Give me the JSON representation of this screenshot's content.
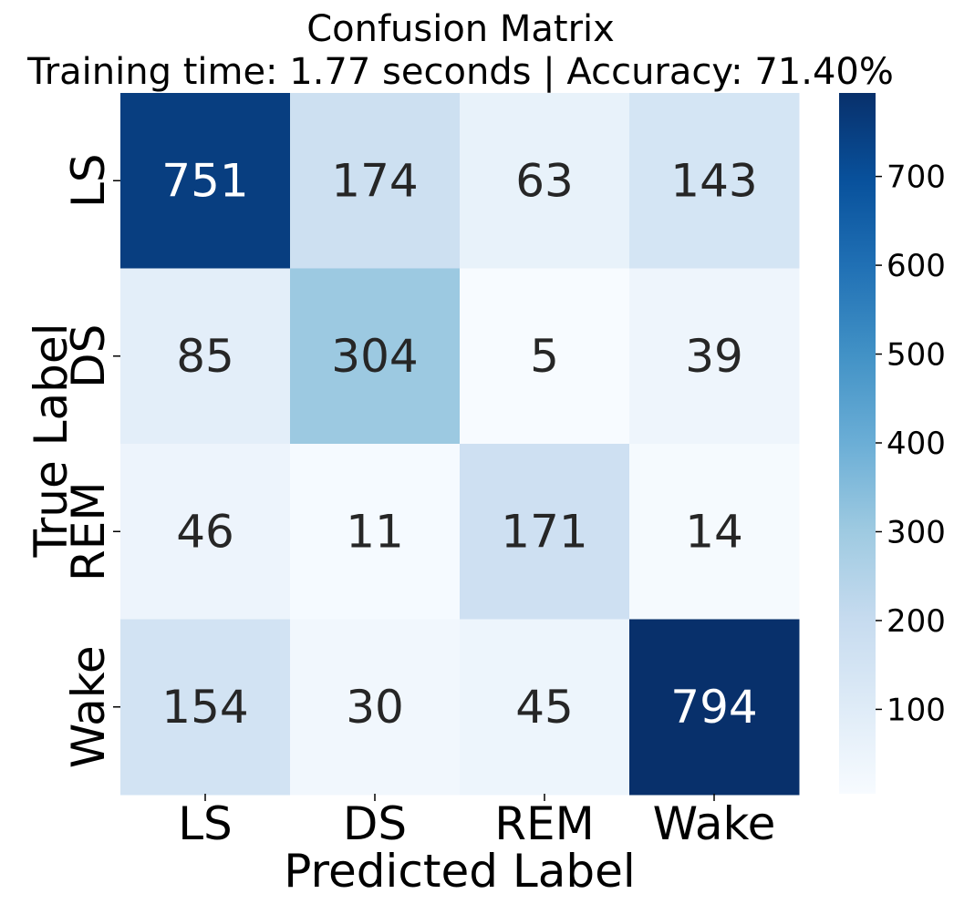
{
  "chart_data": {
    "type": "heatmap",
    "title": "Confusion Matrix",
    "subtitle": "Training time: 1.77 seconds | Accuracy: 71.40%",
    "xlabel": "Predicted Label",
    "ylabel": "True Label",
    "x_categories": [
      "LS",
      "DS",
      "REM",
      "Wake"
    ],
    "y_categories": [
      "LS",
      "DS",
      "REM",
      "Wake"
    ],
    "values": [
      [
        751,
        174,
        63,
        143
      ],
      [
        85,
        304,
        5,
        39
      ],
      [
        46,
        11,
        171,
        14
      ],
      [
        154,
        30,
        45,
        794
      ]
    ],
    "colormap": "Blues",
    "colorbar": {
      "range": [
        5,
        794
      ],
      "ticks": [
        100,
        200,
        300,
        400,
        500,
        600,
        700
      ],
      "tick_labels": [
        "100",
        "200",
        "300",
        "400",
        "500",
        "600",
        "700"
      ]
    },
    "annotation_colors": {
      "dark": "#262626",
      "light": "#ffffff"
    }
  }
}
